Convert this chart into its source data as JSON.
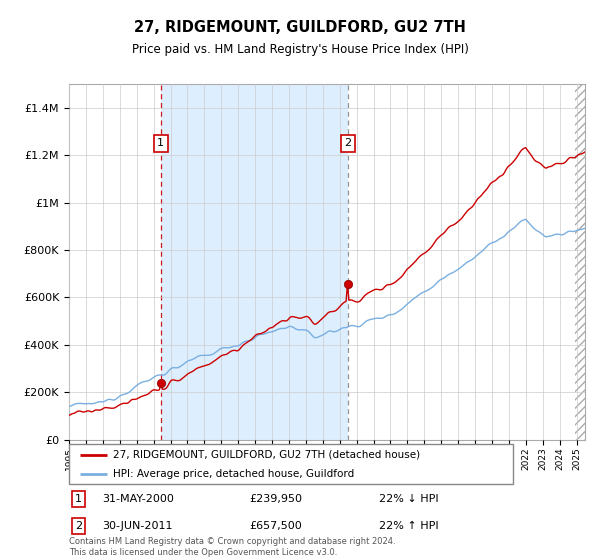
{
  "title": "27, RIDGEMOUNT, GUILDFORD, GU2 7TH",
  "subtitle": "Price paid vs. HM Land Registry's House Price Index (HPI)",
  "ylabel_ticks": [
    "£0",
    "£200K",
    "£400K",
    "£600K",
    "£800K",
    "£1M",
    "£1.2M",
    "£1.4M"
  ],
  "ylim": [
    0,
    1500000
  ],
  "yticks": [
    0,
    200000,
    400000,
    600000,
    800000,
    1000000,
    1200000,
    1400000
  ],
  "xmin": 1995.0,
  "xmax": 2025.5,
  "annotation1": {
    "x": 2000.42,
    "label": "1",
    "price": 239950,
    "date": "31-MAY-2000",
    "pct": "22% ↓ HPI"
  },
  "annotation2": {
    "x": 2011.5,
    "label": "2",
    "price": 657500,
    "date": "30-JUN-2011",
    "pct": "22% ↑ HPI"
  },
  "legend_property": "27, RIDGEMOUNT, GUILDFORD, GU2 7TH (detached house)",
  "legend_hpi": "HPI: Average price, detached house, Guildford",
  "footer": "Contains HM Land Registry data © Crown copyright and database right 2024.\nThis data is licensed under the Open Government Licence v3.0.",
  "property_color": "#cc0000",
  "hpi_color": "#7aafe0",
  "shade_color": "#ddeeff",
  "ann1_vline_color": "#cc0000",
  "ann2_vline_color": "#888888"
}
